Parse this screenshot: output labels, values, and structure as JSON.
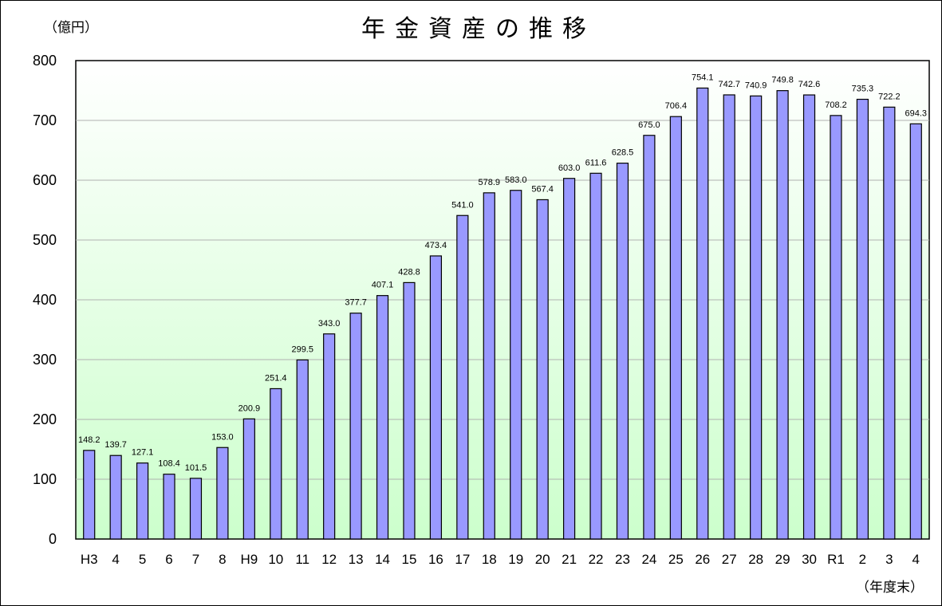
{
  "chart_data": {
    "type": "bar",
    "title": "年金資産の推移",
    "ylabel": "（億円）",
    "xlabel": "（年度末）",
    "ylim": [
      0,
      800
    ],
    "yticks": [
      0,
      100,
      200,
      300,
      400,
      500,
      600,
      700,
      800
    ],
    "grid": true,
    "categories": [
      "H3",
      "4",
      "5",
      "6",
      "7",
      "8",
      "H9",
      "10",
      "11",
      "12",
      "13",
      "14",
      "15",
      "16",
      "17",
      "18",
      "19",
      "20",
      "21",
      "22",
      "23",
      "24",
      "25",
      "26",
      "27",
      "28",
      "29",
      "30",
      "R1",
      "2",
      "3",
      "4"
    ],
    "values": [
      148.2,
      139.7,
      127.1,
      108.4,
      101.5,
      153.0,
      200.9,
      251.4,
      299.5,
      343.0,
      377.7,
      407.1,
      428.8,
      473.4,
      541.0,
      578.9,
      583.0,
      567.4,
      603.0,
      611.6,
      628.5,
      675.0,
      706.4,
      754.1,
      742.7,
      740.9,
      749.8,
      742.6,
      708.2,
      735.3,
      722.2,
      694.3
    ],
    "data_labels": [
      "148.2",
      "139.7",
      "127.1",
      "108.4",
      "101.5",
      "153.0",
      "200.9",
      "251.4",
      "299.5",
      "343.0",
      "377.7",
      "407.1",
      "428.8",
      "473.4",
      "541.0",
      "578.9",
      "583.0",
      "567.4",
      "603.0",
      "611.6",
      "628.5",
      "675.0",
      "706.4",
      "754.1",
      "742.7",
      "740.9",
      "749.8",
      "742.6",
      "708.2",
      "735.3",
      "722.2",
      "694.3"
    ],
    "colors": {
      "bar_fill": "#9999ff",
      "bar_stroke": "#000000",
      "plot_top": "#ffffff",
      "plot_bottom": "#ccffcc",
      "grid": "#b0b0b0"
    }
  }
}
